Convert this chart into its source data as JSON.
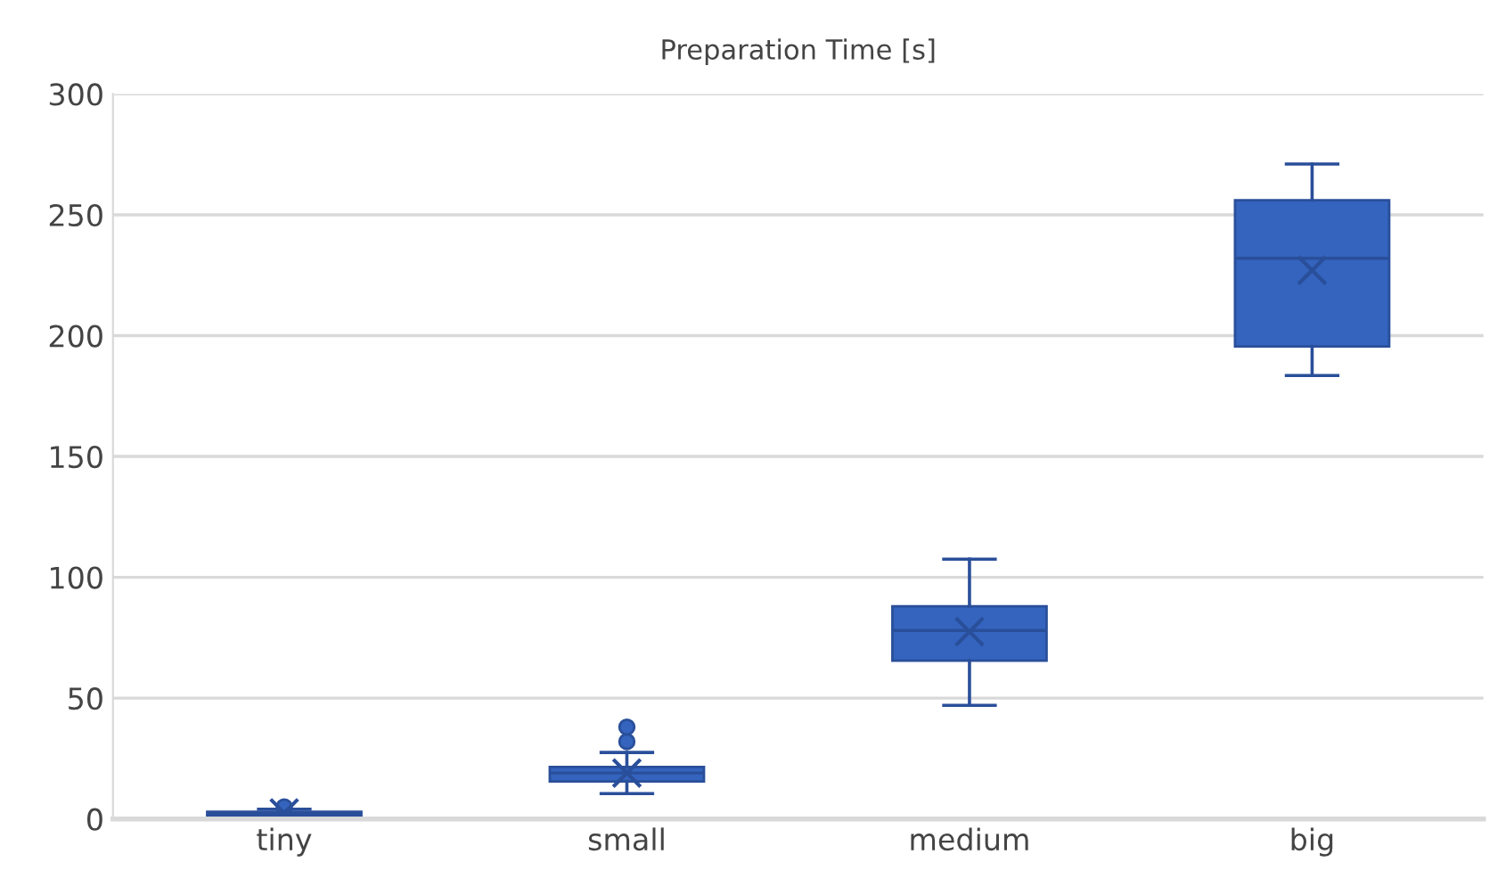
{
  "chart_data": {
    "type": "box",
    "title": "Preparation Time [s]",
    "categories": [
      "tiny",
      "small",
      "medium",
      "big"
    ],
    "boxes": [
      {
        "low": 0,
        "q1": 1,
        "median": 2,
        "q3": 3,
        "high": 4,
        "mean": 2.5,
        "outliers": [
          5
        ]
      },
      {
        "low": 10.5,
        "q1": 15.5,
        "median": 19,
        "q3": 21.5,
        "high": 27.5,
        "mean": 19,
        "outliers": [
          32,
          38
        ]
      },
      {
        "low": 47,
        "q1": 65.5,
        "median": 78,
        "q3": 88,
        "high": 107.5,
        "mean": 77.5
      },
      {
        "low": 183.5,
        "q1": 195.5,
        "median": 232,
        "q3": 256,
        "high": 271,
        "mean": 227
      }
    ],
    "color": "#3464be",
    "ylim": [
      0,
      300
    ],
    "yticks": [
      0,
      50,
      100,
      150,
      200,
      250,
      300
    ],
    "grid": "y"
  }
}
